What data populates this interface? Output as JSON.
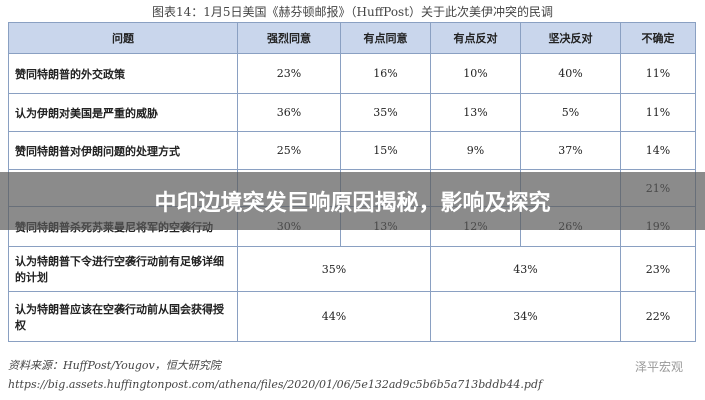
{
  "title": "图表14：1月5日美国《赫芬顿邮报》（HuffPost）关于此次美伊冲突的民调",
  "table": {
    "header": [
      "问题",
      "强烈同意",
      "有点同意",
      "有点反对",
      "坚决反对",
      "不确定"
    ],
    "rows": [
      [
        "赞同特朗普的外交政策",
        "23%",
        "16%",
        "10%",
        "40%",
        "11%"
      ],
      [
        "认为伊朗对美国是严重的威胁",
        "36%",
        "35%",
        "13%",
        "5%",
        "11%"
      ],
      [
        "赞同特朗普对伊朗问题的处理方式",
        "25%",
        "15%",
        "9%",
        "37%",
        "14%"
      ],
      [
        null,
        null,
        null,
        null,
        null,
        "21%"
      ],
      [
        "赞同特朗普杀死苏莱曼尼将军的空袭行动",
        "30%",
        "13%",
        "12%",
        "26%",
        "19%"
      ],
      [
        "认为特朗普下令进行空袭行动前有足够详细的计划",
        "35%",
        "43%",
        "23%"
      ],
      [
        "认为特朗普应该在空袭行动前从国会获得授权",
        "44%",
        "34%",
        "22%"
      ]
    ]
  },
  "source": "资料来源：HuffPost/Yougov，恒大研究院",
  "url": "https://big.assets.huffingtonpost.com/athena/files/2020/01/06/5e132ad9c5b6b5a713bddb44.pdf",
  "watermark": "泽平宏观",
  "banner": "中印边境突发巨响原因揭秘，影响及探究"
}
